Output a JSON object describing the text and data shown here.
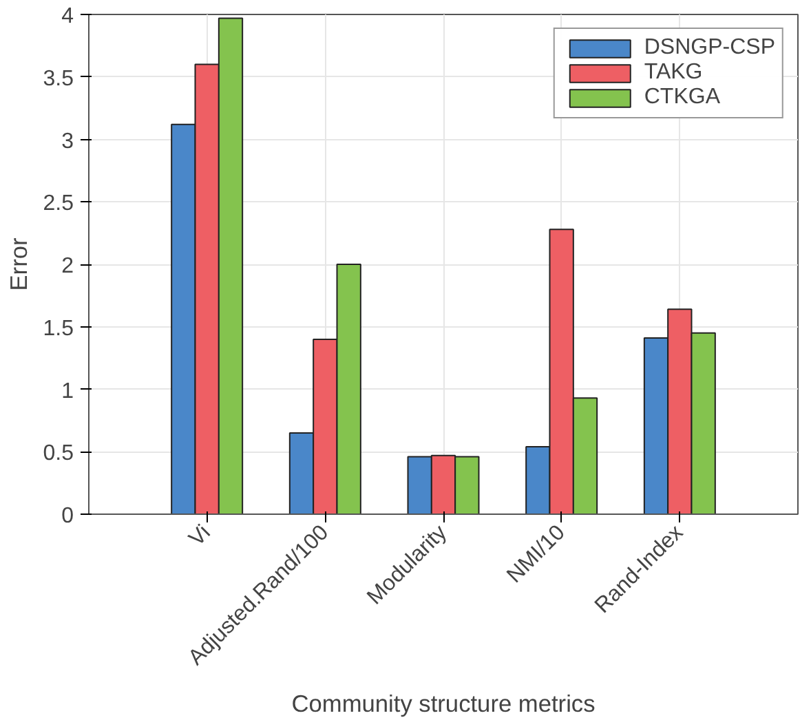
{
  "chart_data": {
    "type": "bar",
    "xlabel": "Community structure metrics",
    "ylabel": "Error",
    "categories": [
      "Vi",
      "Adjusted.Rand/100",
      "Modularity",
      "NMI/10",
      "Rand-Index"
    ],
    "series": [
      {
        "name": "DSNGP-CSP",
        "color": "#4a87c9",
        "values": [
          3.12,
          0.65,
          0.46,
          0.54,
          1.41
        ]
      },
      {
        "name": "TAKG",
        "color": "#ee5f64",
        "values": [
          3.6,
          1.4,
          0.47,
          2.28,
          1.64
        ]
      },
      {
        "name": "CTKGA",
        "color": "#84c34e",
        "values": [
          3.97,
          2.0,
          0.46,
          0.93,
          1.45
        ]
      }
    ],
    "ylim": [
      0,
      4
    ],
    "yticks": [
      0,
      0.5,
      1,
      1.5,
      2,
      2.5,
      3,
      3.5,
      4
    ],
    "grid": true,
    "legend": "top right"
  }
}
